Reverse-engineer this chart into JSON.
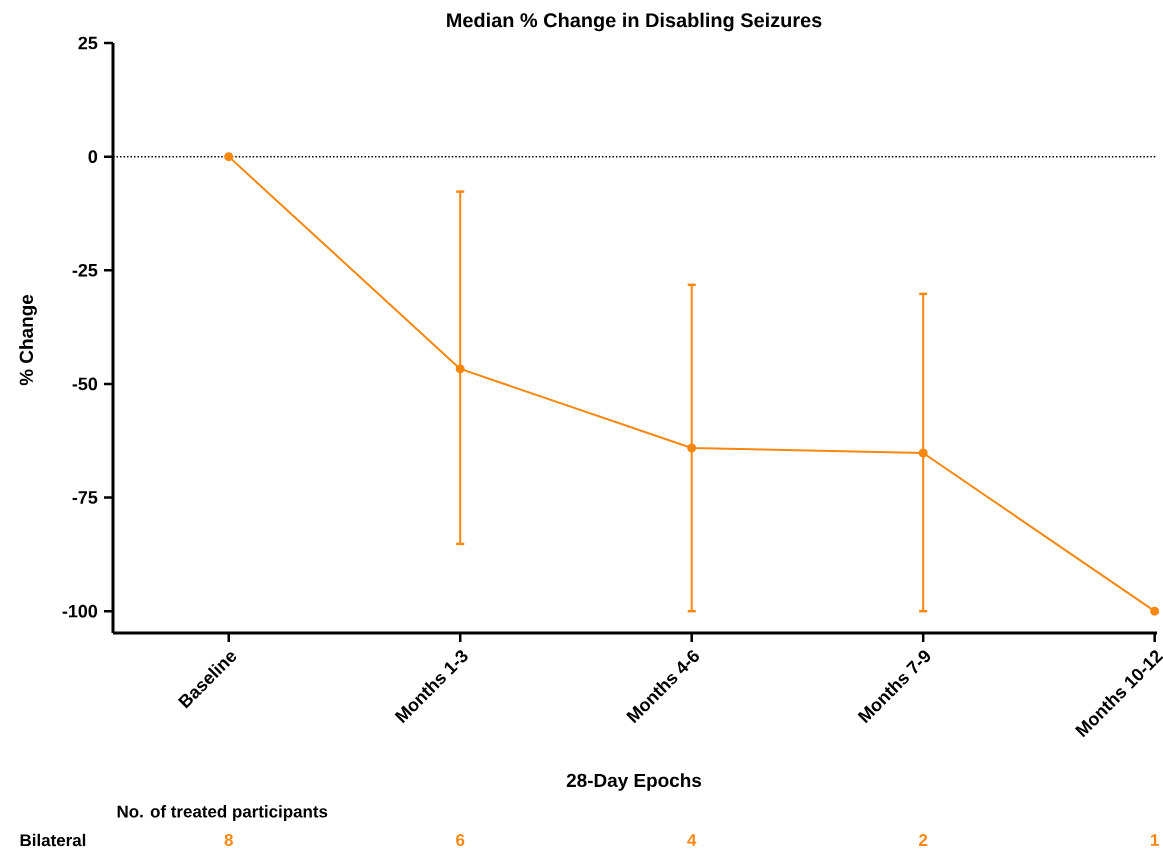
{
  "chart_data": {
    "type": "line",
    "title": "Median % Change in Disabling Seizures",
    "xlabel": "28-Day Epochs",
    "ylabel": "% Change",
    "categories": [
      "Baseline",
      "Months 1-3",
      "Months 4-6",
      "Months 7-9",
      "Months 10-12"
    ],
    "series": [
      {
        "color": "#f7870f",
        "values": [
          0,
          -46.7,
          -64.1,
          -65.2,
          -100
        ],
        "errors": [
          null,
          [
            -85.2,
            -7.7
          ],
          [
            -100,
            -28.2
          ],
          [
            -100,
            -30.2
          ],
          null
        ]
      }
    ],
    "ylim": [
      -104.8,
      25
    ],
    "yticks": [
      -100,
      -75,
      -50,
      -25,
      0,
      25
    ],
    "ref_lines": [
      {
        "axis": "y",
        "value": 0,
        "color": "#000000",
        "line_style": "dotted"
      }
    ],
    "marker": "circle",
    "line_style": "solid",
    "grid": false,
    "annotations": [
      "No. of treated participants",
      "Bilateral",
      "8",
      "6",
      "4",
      "2",
      "1"
    ]
  }
}
